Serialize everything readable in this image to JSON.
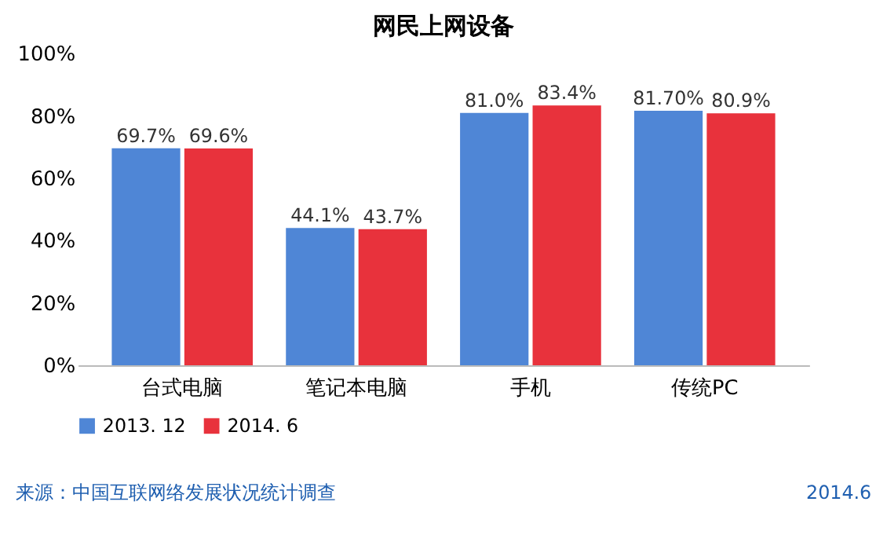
{
  "chart_data": {
    "type": "bar",
    "title": "网民上网设备",
    "categories": [
      "台式电脑",
      "笔记本电脑",
      "手机",
      "传统PC"
    ],
    "series": [
      {
        "name": "2013. 12",
        "color": "#4f86d6",
        "values": [
          69.7,
          44.1,
          81.0,
          81.7
        ],
        "value_labels": [
          "69.7%",
          "44.1%",
          "81.0%",
          "81.70%"
        ]
      },
      {
        "name": "2014. 6",
        "color": "#e8323c",
        "values": [
          69.6,
          43.7,
          83.4,
          80.9
        ],
        "value_labels": [
          "69.6%",
          "43.7%",
          "83.4%",
          "80.9%"
        ]
      }
    ],
    "ylim": [
      0,
      100
    ],
    "yticks": [
      {
        "value": 0,
        "label": "0%"
      },
      {
        "value": 20,
        "label": "20%"
      },
      {
        "value": 40,
        "label": "40%"
      },
      {
        "value": 60,
        "label": "60%"
      },
      {
        "value": 80,
        "label": "80%"
      },
      {
        "value": 100,
        "label": "100%"
      }
    ],
    "grid": false,
    "legend": "bottom",
    "annotations": [
      "来源：中国互联网络发展状况统计调查",
      "2014.6"
    ]
  }
}
